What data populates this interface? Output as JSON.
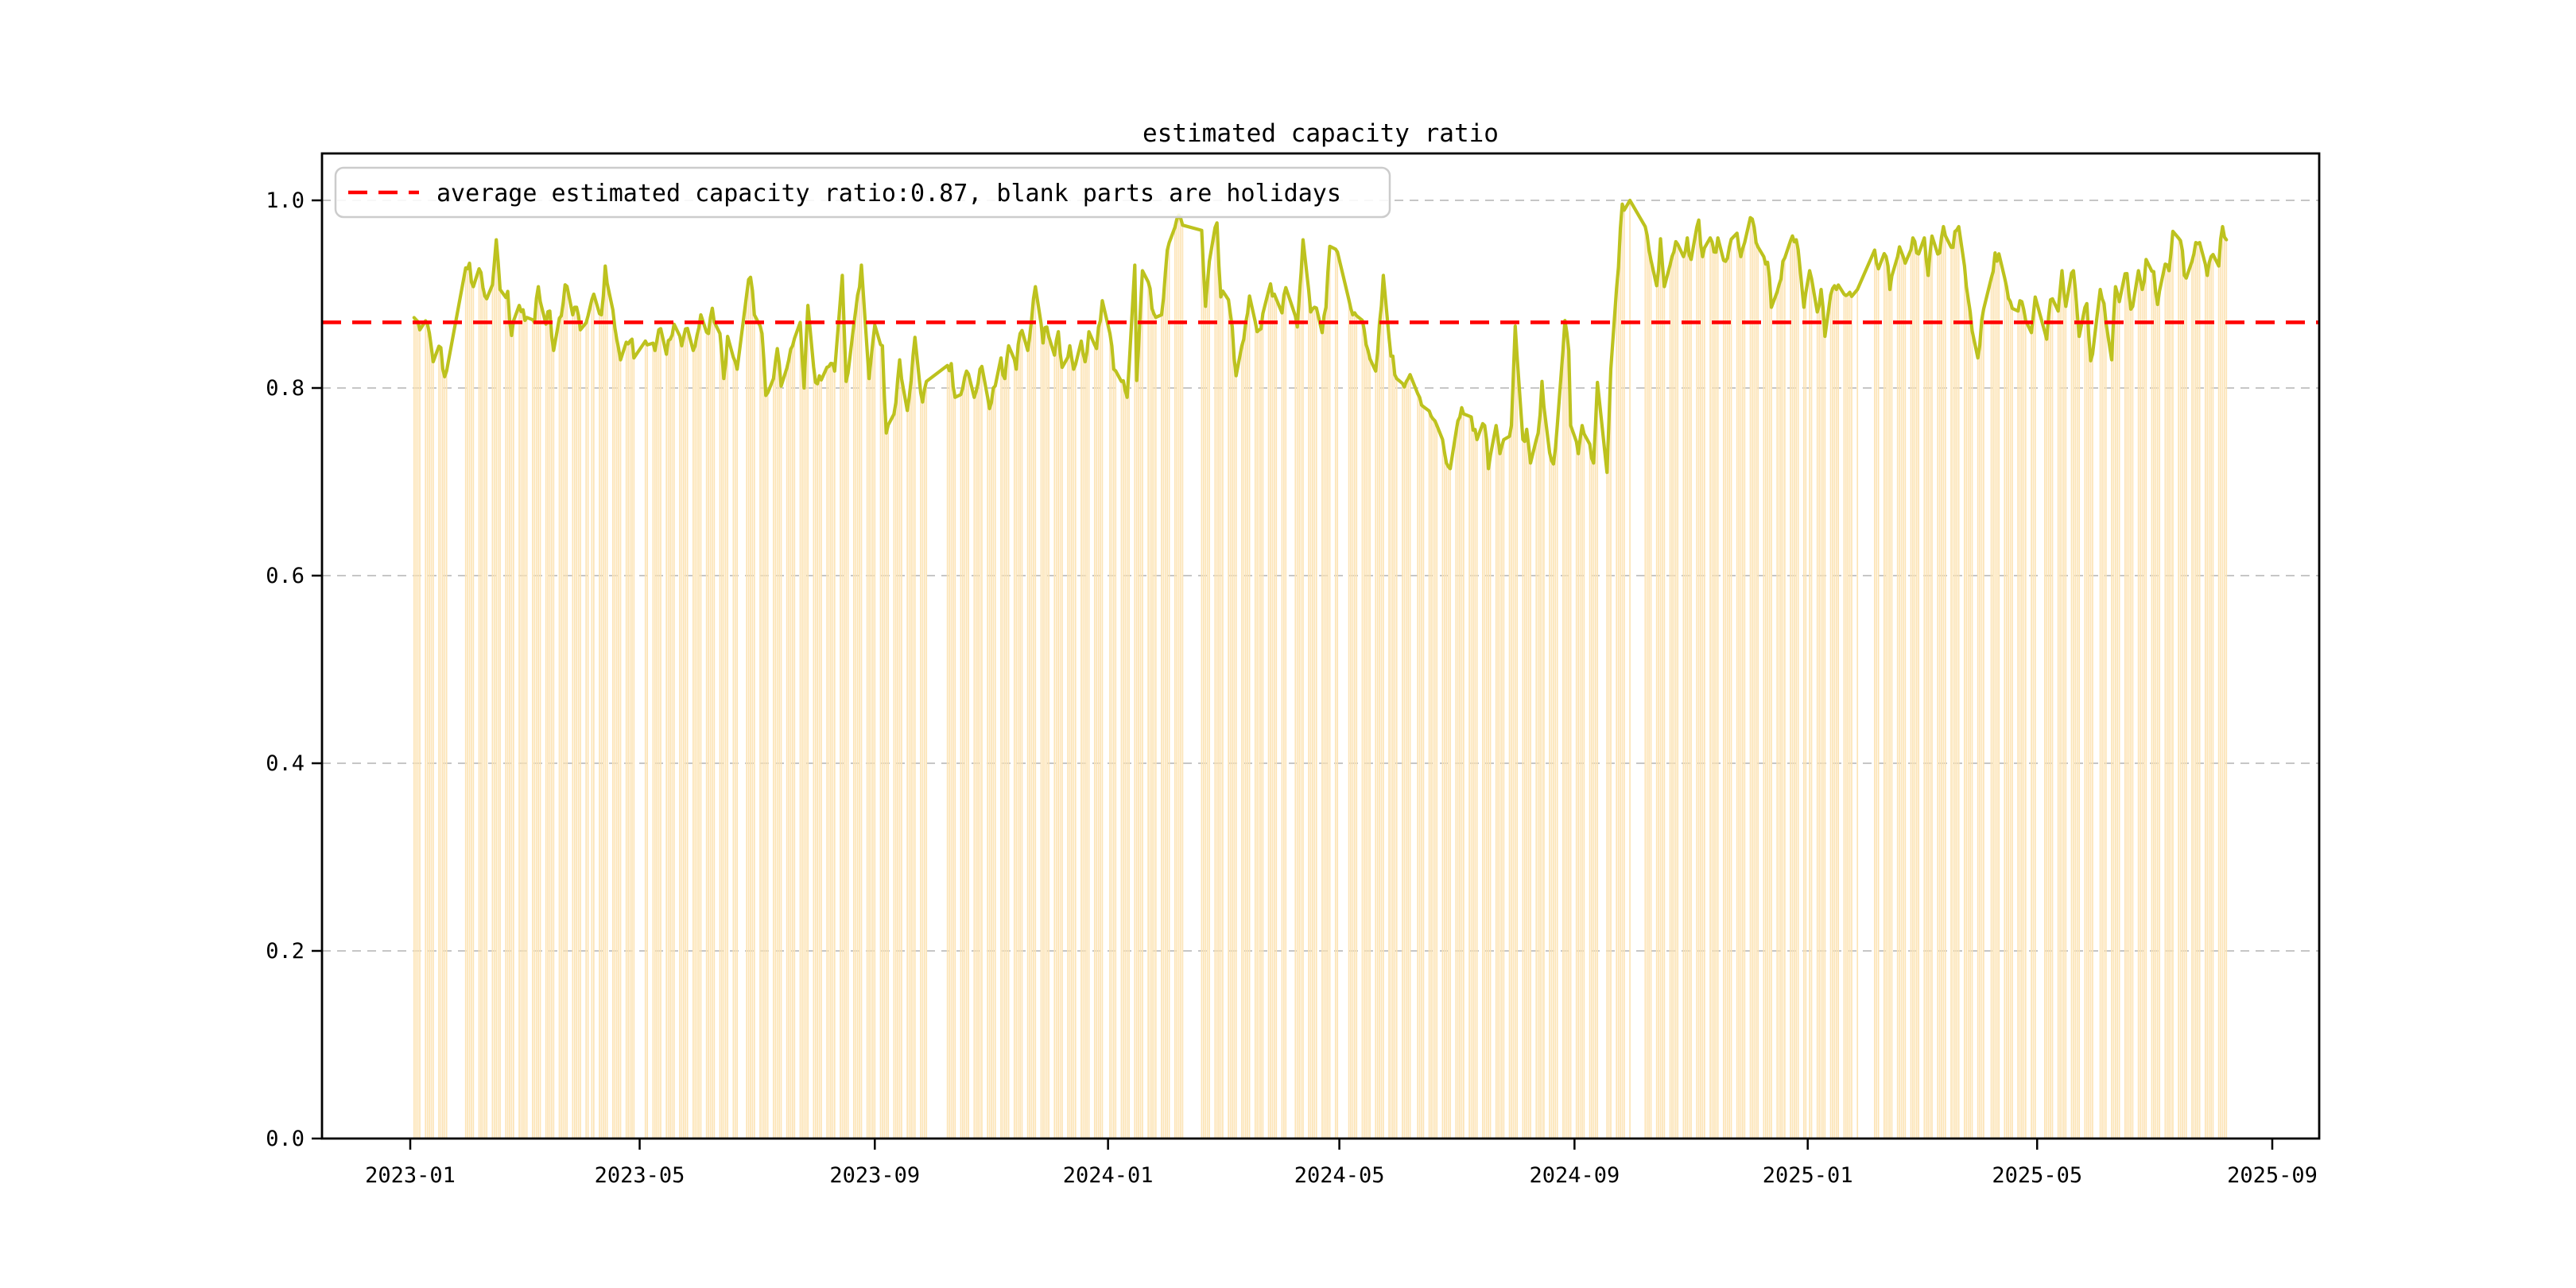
{
  "page": {
    "title": "estimated capacity ratio"
  },
  "chart_data": {
    "type": "line",
    "title": "estimated capacity ratio",
    "legend": [
      {
        "label": "average estimated capacity ratio:0.87, blank parts are holidays",
        "marker": "red-dashed-line",
        "color": "#ff0000",
        "position": "upper left"
      }
    ],
    "average_line": {
      "value": 0.87,
      "color": "#ff0000",
      "style": "dashed"
    },
    "ylim": [
      0.0,
      1.0
    ],
    "yticks": [
      0.0,
      0.2,
      0.4,
      0.6,
      0.8,
      1.0
    ],
    "ytick_labels": [
      "0.0",
      "0.2",
      "0.4",
      "0.6",
      "0.8",
      "1.0"
    ],
    "xtick_labels": [
      "2023-01",
      "2023-05",
      "2023-09",
      "2024-01",
      "2024-05",
      "2024-09",
      "2025-01",
      "2025-05",
      "2025-09"
    ],
    "xtick_dates": [
      "2023-01-01",
      "2023-05-01",
      "2023-09-01",
      "2024-01-01",
      "2024-05-01",
      "2024-09-01",
      "2025-01-01",
      "2025-05-01",
      "2025-09-01"
    ],
    "grid": true,
    "grid_color": "#b3b3b3",
    "line_color": "#bdc21e",
    "bar_color": "#fce4b6",
    "data_start": "2023-01-03",
    "data_end": "2025-08-08",
    "weekends_blank": true,
    "noise_amplitude": 0.016,
    "holidays": [
      [
        "2023-01-23",
        "2023-01-27"
      ],
      [
        "2023-04-05",
        "2023-04-05"
      ],
      [
        "2023-05-01",
        "2023-05-03"
      ],
      [
        "2023-06-22",
        "2023-06-23"
      ],
      [
        "2023-09-29",
        "2023-09-29"
      ],
      [
        "2023-10-02",
        "2023-10-06"
      ],
      [
        "2024-01-01",
        "2024-01-01"
      ],
      [
        "2024-02-12",
        "2024-02-16"
      ],
      [
        "2024-04-04",
        "2024-04-05"
      ],
      [
        "2024-05-01",
        "2024-05-03"
      ],
      [
        "2024-06-10",
        "2024-06-10"
      ],
      [
        "2024-09-16",
        "2024-09-17"
      ],
      [
        "2024-10-01",
        "2024-10-07"
      ],
      [
        "2025-01-01",
        "2025-01-01"
      ],
      [
        "2025-01-28",
        "2025-02-04"
      ],
      [
        "2025-04-04",
        "2025-04-04"
      ],
      [
        "2025-05-01",
        "2025-05-02"
      ],
      [
        "2025-06-02",
        "2025-06-02"
      ]
    ],
    "line_series_anchors": [
      [
        "2023-01-03",
        0.875
      ],
      [
        "2023-01-06",
        0.862
      ],
      [
        "2023-01-10",
        0.868
      ],
      [
        "2023-01-13",
        0.828
      ],
      [
        "2023-01-17",
        0.843
      ],
      [
        "2023-01-19",
        0.812
      ],
      [
        "2023-01-20",
        0.818
      ],
      [
        "2023-01-30",
        0.928
      ],
      [
        "2023-02-01",
        0.933
      ],
      [
        "2023-02-03",
        0.908
      ],
      [
        "2023-02-07",
        0.923
      ],
      [
        "2023-02-09",
        0.898
      ],
      [
        "2023-02-13",
        0.91
      ],
      [
        "2023-02-15",
        0.958
      ],
      [
        "2023-02-17",
        0.905
      ],
      [
        "2023-02-21",
        0.903
      ],
      [
        "2023-02-23",
        0.856
      ],
      [
        "2023-02-27",
        0.888
      ],
      [
        "2023-03-02",
        0.872
      ],
      [
        "2023-03-07",
        0.87
      ],
      [
        "2023-03-09",
        0.908
      ],
      [
        "2023-03-13",
        0.868
      ],
      [
        "2023-03-15",
        0.882
      ],
      [
        "2023-03-17",
        0.84
      ],
      [
        "2023-03-21",
        0.877
      ],
      [
        "2023-03-23",
        0.91
      ],
      [
        "2023-03-27",
        0.878
      ],
      [
        "2023-03-29",
        0.886
      ],
      [
        "2023-03-31",
        0.862
      ],
      [
        "2023-04-04",
        0.877
      ],
      [
        "2023-04-07",
        0.9
      ],
      [
        "2023-04-11",
        0.878
      ],
      [
        "2023-04-13",
        0.93
      ],
      [
        "2023-04-17",
        0.883
      ],
      [
        "2023-04-19",
        0.852
      ],
      [
        "2023-04-21",
        0.83
      ],
      [
        "2023-04-25",
        0.847
      ],
      [
        "2023-04-27",
        0.852
      ],
      [
        "2023-04-28",
        0.832
      ],
      [
        "2023-05-04",
        0.85
      ],
      [
        "2023-05-09",
        0.84
      ],
      [
        "2023-05-11",
        0.862
      ],
      [
        "2023-05-15",
        0.836
      ],
      [
        "2023-05-17",
        0.852
      ],
      [
        "2023-05-19",
        0.868
      ],
      [
        "2023-05-23",
        0.845
      ],
      [
        "2023-05-25",
        0.863
      ],
      [
        "2023-05-29",
        0.84
      ],
      [
        "2023-05-31",
        0.856
      ],
      [
        "2023-06-02",
        0.878
      ],
      [
        "2023-06-06",
        0.858
      ],
      [
        "2023-06-08",
        0.885
      ],
      [
        "2023-06-12",
        0.858
      ],
      [
        "2023-06-14",
        0.81
      ],
      [
        "2023-06-16",
        0.855
      ],
      [
        "2023-06-20",
        0.828
      ],
      [
        "2023-06-21",
        0.82
      ],
      [
        "2023-06-26",
        0.9
      ],
      [
        "2023-06-28",
        0.918
      ],
      [
        "2023-06-30",
        0.878
      ],
      [
        "2023-07-04",
        0.858
      ],
      [
        "2023-07-06",
        0.792
      ],
      [
        "2023-07-10",
        0.81
      ],
      [
        "2023-07-12",
        0.842
      ],
      [
        "2023-07-14",
        0.802
      ],
      [
        "2023-07-18",
        0.83
      ],
      [
        "2023-07-20",
        0.845
      ],
      [
        "2023-07-24",
        0.87
      ],
      [
        "2023-07-26",
        0.8
      ],
      [
        "2023-07-28",
        0.888
      ],
      [
        "2023-08-01",
        0.806
      ],
      [
        "2023-08-03",
        0.813
      ],
      [
        "2023-08-08",
        0.823
      ],
      [
        "2023-08-11",
        0.818
      ],
      [
        "2023-08-15",
        0.92
      ],
      [
        "2023-08-17",
        0.807
      ],
      [
        "2023-08-21",
        0.867
      ],
      [
        "2023-08-25",
        0.931
      ],
      [
        "2023-08-29",
        0.81
      ],
      [
        "2023-09-01",
        0.867
      ],
      [
        "2023-09-05",
        0.845
      ],
      [
        "2023-09-07",
        0.752
      ],
      [
        "2023-09-11",
        0.772
      ],
      [
        "2023-09-14",
        0.83
      ],
      [
        "2023-09-18",
        0.776
      ],
      [
        "2023-09-22",
        0.854
      ],
      [
        "2023-09-26",
        0.785
      ],
      [
        "2023-09-28",
        0.807
      ],
      [
        "2023-10-09",
        0.824
      ],
      [
        "2023-10-11",
        0.826
      ],
      [
        "2023-10-13",
        0.79
      ],
      [
        "2023-10-17",
        0.8
      ],
      [
        "2023-10-19",
        0.818
      ],
      [
        "2023-10-23",
        0.79
      ],
      [
        "2023-10-25",
        0.805
      ],
      [
        "2023-10-27",
        0.823
      ],
      [
        "2023-10-31",
        0.778
      ],
      [
        "2023-11-02",
        0.8
      ],
      [
        "2023-11-06",
        0.832
      ],
      [
        "2023-11-08",
        0.81
      ],
      [
        "2023-11-10",
        0.845
      ],
      [
        "2023-11-14",
        0.82
      ],
      [
        "2023-11-16",
        0.858
      ],
      [
        "2023-11-20",
        0.84
      ],
      [
        "2023-11-24",
        0.908
      ],
      [
        "2023-11-28",
        0.848
      ],
      [
        "2023-11-30",
        0.865
      ],
      [
        "2023-12-04",
        0.835
      ],
      [
        "2023-12-06",
        0.86
      ],
      [
        "2023-12-08",
        0.822
      ],
      [
        "2023-12-12",
        0.845
      ],
      [
        "2023-12-14",
        0.82
      ],
      [
        "2023-12-18",
        0.85
      ],
      [
        "2023-12-20",
        0.828
      ],
      [
        "2023-12-22",
        0.86
      ],
      [
        "2023-12-26",
        0.842
      ],
      [
        "2023-12-29",
        0.893
      ],
      [
        "2024-01-02",
        0.858
      ],
      [
        "2024-01-04",
        0.82
      ],
      [
        "2024-01-08",
        0.807
      ],
      [
        "2024-01-11",
        0.79
      ],
      [
        "2024-01-15",
        0.931
      ],
      [
        "2024-01-16",
        0.808
      ],
      [
        "2024-01-19",
        0.925
      ],
      [
        "2024-01-23",
        0.906
      ],
      [
        "2024-01-25",
        0.879
      ],
      [
        "2024-01-29",
        0.878
      ],
      [
        "2024-01-31",
        0.923
      ],
      [
        "2024-02-02",
        0.955
      ],
      [
        "2024-02-06",
        0.98
      ],
      [
        "2024-02-08",
        0.981
      ],
      [
        "2024-02-19",
        0.968
      ],
      [
        "2024-02-21",
        0.887
      ],
      [
        "2024-02-23",
        0.935
      ],
      [
        "2024-02-27",
        0.976
      ],
      [
        "2024-02-29",
        0.897
      ],
      [
        "2024-03-04",
        0.894
      ],
      [
        "2024-03-06",
        0.865
      ],
      [
        "2024-03-08",
        0.813
      ],
      [
        "2024-03-12",
        0.852
      ],
      [
        "2024-03-15",
        0.898
      ],
      [
        "2024-03-19",
        0.86
      ],
      [
        "2024-03-21",
        0.863
      ],
      [
        "2024-03-26",
        0.911
      ],
      [
        "2024-03-28",
        0.9
      ],
      [
        "2024-04-01",
        0.88
      ],
      [
        "2024-04-03",
        0.907
      ],
      [
        "2024-04-09",
        0.865
      ],
      [
        "2024-04-12",
        0.958
      ],
      [
        "2024-04-16",
        0.881
      ],
      [
        "2024-04-18",
        0.886
      ],
      [
        "2024-04-22",
        0.859
      ],
      [
        "2024-04-24",
        0.886
      ],
      [
        "2024-04-26",
        0.951
      ],
      [
        "2024-04-29",
        0.948
      ],
      [
        "2024-04-30",
        0.945
      ],
      [
        "2024-05-06",
        0.894
      ],
      [
        "2024-05-08",
        0.878
      ],
      [
        "2024-05-10",
        0.877
      ],
      [
        "2024-05-14",
        0.862
      ],
      [
        "2024-05-16",
        0.84
      ],
      [
        "2024-05-20",
        0.818
      ],
      [
        "2024-05-24",
        0.92
      ],
      [
        "2024-05-28",
        0.834
      ],
      [
        "2024-05-31",
        0.81
      ],
      [
        "2024-06-04",
        0.801
      ],
      [
        "2024-06-06",
        0.81
      ],
      [
        "2024-06-12",
        0.79
      ],
      [
        "2024-06-14",
        0.78
      ],
      [
        "2024-06-18",
        0.77
      ],
      [
        "2024-06-20",
        0.765
      ],
      [
        "2024-06-24",
        0.745
      ],
      [
        "2024-06-26",
        0.72
      ],
      [
        "2024-06-28",
        0.714
      ],
      [
        "2024-07-02",
        0.765
      ],
      [
        "2024-07-04",
        0.779
      ],
      [
        "2024-07-08",
        0.77
      ],
      [
        "2024-07-10",
        0.755
      ],
      [
        "2024-07-12",
        0.745
      ],
      [
        "2024-07-16",
        0.76
      ],
      [
        "2024-07-18",
        0.714
      ],
      [
        "2024-07-22",
        0.76
      ],
      [
        "2024-07-24",
        0.73
      ],
      [
        "2024-07-26",
        0.745
      ],
      [
        "2024-07-30",
        0.76
      ],
      [
        "2024-08-01",
        0.866
      ],
      [
        "2024-08-05",
        0.745
      ],
      [
        "2024-08-07",
        0.756
      ],
      [
        "2024-08-09",
        0.72
      ],
      [
        "2024-08-13",
        0.752
      ],
      [
        "2024-08-15",
        0.807
      ],
      [
        "2024-08-19",
        0.731
      ],
      [
        "2024-08-21",
        0.719
      ],
      [
        "2024-08-23",
        0.76
      ],
      [
        "2024-08-27",
        0.872
      ],
      [
        "2024-08-29",
        0.84
      ],
      [
        "2024-08-30",
        0.76
      ],
      [
        "2024-09-03",
        0.73
      ],
      [
        "2024-09-05",
        0.76
      ],
      [
        "2024-09-09",
        0.74
      ],
      [
        "2024-09-11",
        0.72
      ],
      [
        "2024-09-13",
        0.806
      ],
      [
        "2024-09-18",
        0.71
      ],
      [
        "2024-09-20",
        0.82
      ],
      [
        "2024-09-23",
        0.906
      ],
      [
        "2024-09-26",
        0.996
      ],
      [
        "2024-09-30",
        1.0
      ],
      [
        "2024-10-08",
        0.972
      ],
      [
        "2024-10-10",
        0.947
      ],
      [
        "2024-10-14",
        0.909
      ],
      [
        "2024-10-16",
        0.959
      ],
      [
        "2024-10-18",
        0.908
      ],
      [
        "2024-10-22",
        0.94
      ],
      [
        "2024-10-24",
        0.956
      ],
      [
        "2024-10-28",
        0.94
      ],
      [
        "2024-10-30",
        0.96
      ],
      [
        "2024-11-01",
        0.937
      ],
      [
        "2024-11-05",
        0.979
      ],
      [
        "2024-11-07",
        0.94
      ],
      [
        "2024-11-11",
        0.96
      ],
      [
        "2024-11-13",
        0.945
      ],
      [
        "2024-11-15",
        0.96
      ],
      [
        "2024-11-19",
        0.935
      ],
      [
        "2024-11-21",
        0.95
      ],
      [
        "2024-11-25",
        0.965
      ],
      [
        "2024-11-27",
        0.94
      ],
      [
        "2024-11-29",
        0.955
      ],
      [
        "2024-12-03",
        0.98
      ],
      [
        "2024-12-05",
        0.955
      ],
      [
        "2024-12-09",
        0.94
      ],
      [
        "2024-12-11",
        0.934
      ],
      [
        "2024-12-13",
        0.886
      ],
      [
        "2024-12-17",
        0.91
      ],
      [
        "2024-12-19",
        0.935
      ],
      [
        "2024-12-23",
        0.957
      ],
      [
        "2024-12-26",
        0.958
      ],
      [
        "2024-12-30",
        0.886
      ],
      [
        "2025-01-02",
        0.925
      ],
      [
        "2025-01-06",
        0.881
      ],
      [
        "2025-01-08",
        0.905
      ],
      [
        "2025-01-10",
        0.855
      ],
      [
        "2025-01-14",
        0.906
      ],
      [
        "2025-01-16",
        0.905
      ],
      [
        "2025-01-20",
        0.9
      ],
      [
        "2025-01-23",
        0.902
      ],
      [
        "2025-01-27",
        0.905
      ],
      [
        "2025-02-05",
        0.947
      ],
      [
        "2025-02-07",
        0.927
      ],
      [
        "2025-02-11",
        0.94
      ],
      [
        "2025-02-13",
        0.905
      ],
      [
        "2025-02-17",
        0.94
      ],
      [
        "2025-02-19",
        0.945
      ],
      [
        "2025-02-21",
        0.933
      ],
      [
        "2025-02-25",
        0.96
      ],
      [
        "2025-02-27",
        0.944
      ],
      [
        "2025-03-03",
        0.96
      ],
      [
        "2025-03-05",
        0.92
      ],
      [
        "2025-03-07",
        0.962
      ],
      [
        "2025-03-11",
        0.944
      ],
      [
        "2025-03-13",
        0.972
      ],
      [
        "2025-03-17",
        0.95
      ],
      [
        "2025-03-21",
        0.972
      ],
      [
        "2025-03-25",
        0.908
      ],
      [
        "2025-03-27",
        0.881
      ],
      [
        "2025-03-31",
        0.832
      ],
      [
        "2025-04-02",
        0.872
      ],
      [
        "2025-04-07",
        0.917
      ],
      [
        "2025-04-11",
        0.943
      ],
      [
        "2025-04-15",
        0.908
      ],
      [
        "2025-04-17",
        0.892
      ],
      [
        "2025-04-21",
        0.882
      ],
      [
        "2025-04-23",
        0.892
      ],
      [
        "2025-04-28",
        0.859
      ],
      [
        "2025-04-30",
        0.897
      ],
      [
        "2025-05-06",
        0.852
      ],
      [
        "2025-05-08",
        0.894
      ],
      [
        "2025-05-12",
        0.882
      ],
      [
        "2025-05-14",
        0.925
      ],
      [
        "2025-05-16",
        0.887
      ],
      [
        "2025-05-20",
        0.925
      ],
      [
        "2025-05-23",
        0.855
      ],
      [
        "2025-05-27",
        0.89
      ],
      [
        "2025-05-29",
        0.829
      ],
      [
        "2025-06-03",
        0.905
      ],
      [
        "2025-06-05",
        0.89
      ],
      [
        "2025-06-09",
        0.83
      ],
      [
        "2025-06-11",
        0.908
      ],
      [
        "2025-06-13",
        0.892
      ],
      [
        "2025-06-17",
        0.922
      ],
      [
        "2025-06-19",
        0.884
      ],
      [
        "2025-06-23",
        0.925
      ],
      [
        "2025-06-25",
        0.905
      ],
      [
        "2025-06-27",
        0.937
      ],
      [
        "2025-07-01",
        0.924
      ],
      [
        "2025-07-03",
        0.889
      ],
      [
        "2025-07-07",
        0.932
      ],
      [
        "2025-07-09",
        0.925
      ],
      [
        "2025-07-11",
        0.967
      ],
      [
        "2025-07-15",
        0.957
      ],
      [
        "2025-07-17",
        0.92
      ],
      [
        "2025-07-21",
        0.935
      ],
      [
        "2025-07-23",
        0.955
      ],
      [
        "2025-07-25",
        0.955
      ],
      [
        "2025-07-29",
        0.92
      ],
      [
        "2025-07-31",
        0.94
      ],
      [
        "2025-08-04",
        0.93
      ],
      [
        "2025-08-06",
        0.972
      ],
      [
        "2025-08-08",
        0.958
      ]
    ]
  }
}
